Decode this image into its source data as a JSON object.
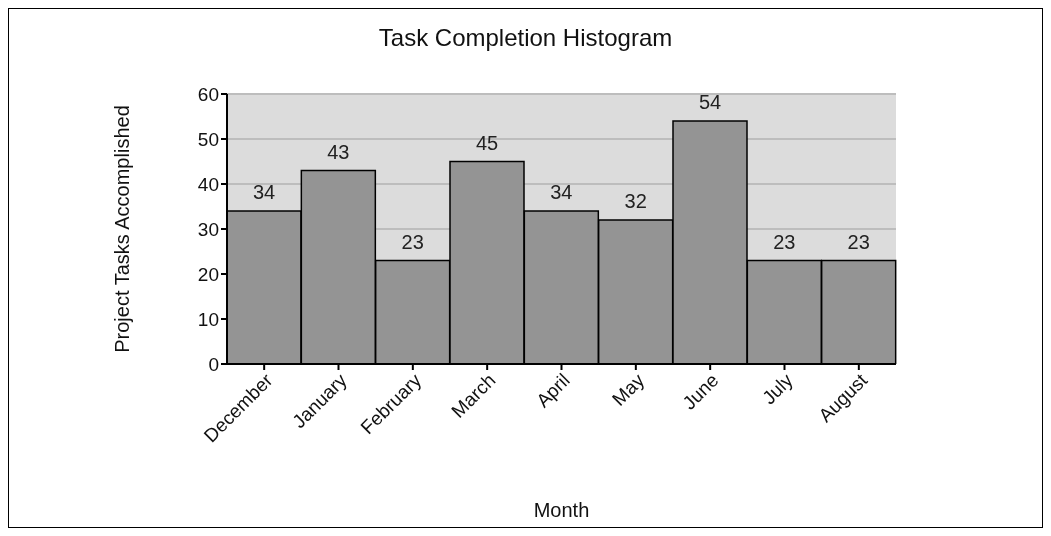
{
  "chart_data": {
    "type": "bar",
    "title": "Task Completion Histogram",
    "xlabel": "Month",
    "ylabel": "Project Tasks Accomplished",
    "categories": [
      "December",
      "January",
      "February",
      "March",
      "April",
      "May",
      "June",
      "July",
      "August"
    ],
    "values": [
      34,
      43,
      23,
      45,
      34,
      32,
      54,
      23,
      23
    ],
    "color": "#949494",
    "ylim": [
      0,
      60
    ],
    "yticks": [
      0,
      10,
      20,
      30,
      40,
      50,
      60
    ],
    "grid": "y",
    "data_labels": true
  }
}
